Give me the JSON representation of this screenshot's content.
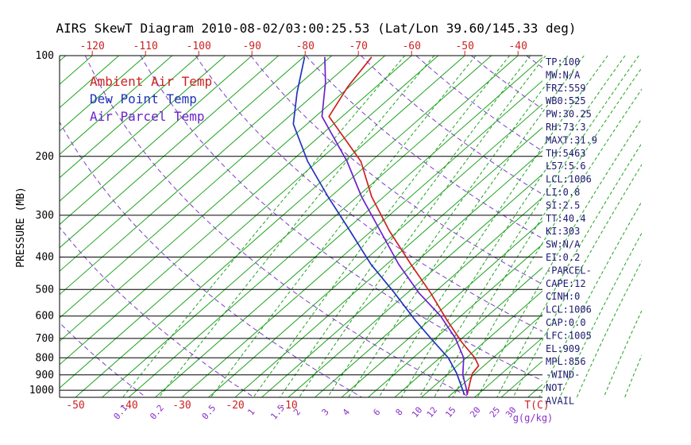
{
  "title": "AIRS SkewT Diagram 2010-08-02/03:00:25.53 (Lat/Lon 39.60/145.33 deg)",
  "legend": [
    {
      "id": "ambient",
      "label": "Ambient Air Temp",
      "color": "#cc2222"
    },
    {
      "id": "dewpoint",
      "label": "Dew Point Temp",
      "color": "#2233bb"
    },
    {
      "id": "parcel",
      "label": "Air Parcel Temp",
      "color": "#6a22cc"
    }
  ],
  "axes": {
    "pressure_axis_label": "PRESSURE (MB)",
    "pressure_ticks": [
      100,
      200,
      300,
      400,
      500,
      600,
      700,
      800,
      900,
      1000
    ],
    "top_temp_ticks": [
      -120,
      -110,
      -100,
      -90,
      -80,
      -70,
      -60,
      -50,
      -40
    ],
    "bottom_temp_ticks": [
      -50,
      -40,
      -30,
      -20,
      -10
    ],
    "temp_unit_label": "T(C)",
    "mixing_unit_label": "g(g/kg)",
    "mixing_ratio_ticks": [
      0.1,
      0.2,
      0.5,
      1,
      1.5,
      2,
      3,
      4,
      6,
      8,
      10,
      12,
      15,
      20,
      25,
      30
    ]
  },
  "stats": [
    "TP:100",
    "MW:N/A",
    "FRZ:559",
    "WB0:525",
    "PW:30.25",
    "RH:73.3",
    "MAXT:31.9",
    "TH:5463",
    "L57:5.6",
    "LCL:1006",
    "LI:0.8",
    "SI:2.5",
    "TT:40.4",
    "KI:303",
    "SW:N/A",
    "EI:0.2",
    "-PARCEL-",
    "CAPE:12",
    "CINH:0",
    "LCL:1006",
    "CAP:0.0",
    "LFC:1005",
    "EL:909",
    "MPL:856",
    "-WIND-",
    "NOT",
    "AVAIL"
  ],
  "colors": {
    "temperature": "#cc2222",
    "dewpoint": "#2233bb",
    "parcel": "#6a22cc",
    "isotherm": "#1fa41f",
    "dry_adiabat": "#7a3fc4",
    "mixing_ratio": "#1fa41f",
    "mixing_label": "#8a2fc8",
    "stats_text": "#1a1a6e",
    "axis_text": "#000000"
  },
  "chart_data": {
    "type": "line",
    "variant": "skew-t",
    "xlabel": "T(C)",
    "ylabel": "PRESSURE (MB)",
    "y_scale": "log",
    "pressure_range": [
      1050,
      100
    ],
    "series": [
      {
        "id": "ambient",
        "name": "Ambient Air Temp",
        "color": "#cc2222",
        "points_p_t": [
          [
            1033,
            23.1
          ],
          [
            950,
            21.0
          ],
          [
            892,
            19.5
          ],
          [
            845,
            19.0
          ],
          [
            800,
            16.6
          ],
          [
            720,
            10.9
          ],
          [
            615,
            3.1
          ],
          [
            512,
            -5.6
          ],
          [
            420,
            -15.5
          ],
          [
            333,
            -26.8
          ],
          [
            264,
            -37.3
          ],
          [
            207,
            -46.9
          ],
          [
            152,
            -62.5
          ],
          [
            124,
            -65.3
          ],
          [
            101,
            -67.2
          ]
        ]
      },
      {
        "id": "dewpoint",
        "name": "Dew Point Temp",
        "color": "#2233bb",
        "points_p_t": [
          [
            1033,
            22.6
          ],
          [
            890,
            16.5
          ],
          [
            800,
            11.6
          ],
          [
            703,
            4.4
          ],
          [
            616,
            -2.8
          ],
          [
            512,
            -12.4
          ],
          [
            420,
            -23.0
          ],
          [
            333,
            -34.2
          ],
          [
            264,
            -45.5
          ],
          [
            207,
            -56.9
          ],
          [
            160,
            -67.6
          ],
          [
            129,
            -73.6
          ],
          [
            101,
            -79.8
          ]
        ]
      },
      {
        "id": "parcel",
        "name": "Air Parcel Temp",
        "color": "#6a22cc",
        "points_p_t": [
          [
            1033,
            23.1
          ],
          [
            1000,
            22.0
          ],
          [
            900,
            18.0
          ],
          [
            800,
            14.5
          ],
          [
            700,
            8.8
          ],
          [
            600,
            1.2
          ],
          [
            512,
            -7.8
          ],
          [
            420,
            -17.8
          ],
          [
            333,
            -28.5
          ],
          [
            264,
            -39.2
          ],
          [
            207,
            -49.5
          ],
          [
            152,
            -63.8
          ],
          [
            120,
            -70.5
          ],
          [
            101,
            -76.0
          ]
        ]
      }
    ],
    "background": {
      "isotherm_range_c": [
        -140,
        45
      ],
      "isotherm_step_c": 5,
      "dry_adiabat_theta_c": [
        -40,
        -20,
        0,
        20,
        40,
        60,
        80,
        100,
        120,
        140,
        160,
        180
      ],
      "mixing_ratio_lines_g_kg": [
        0.1,
        0.2,
        0.5,
        1,
        1.5,
        2,
        3,
        4,
        6,
        8,
        10,
        12,
        15,
        20,
        25,
        30,
        40,
        50,
        60,
        80,
        100
      ]
    }
  }
}
